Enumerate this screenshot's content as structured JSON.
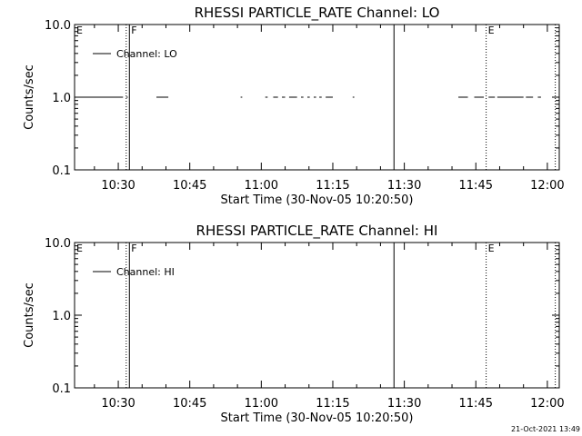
{
  "footer": {
    "timestamp": "21-Oct-2021 13:49"
  },
  "chart_data": [
    {
      "type": "line",
      "title": "RHESSI PARTICLE_RATE Channel: LO",
      "xlabel": "Start Time (30-Nov-05 10:20:50)",
      "ylabel": "Counts/sec",
      "yscale": "log",
      "ylim": [
        0.1,
        10.0
      ],
      "xlim": [
        "10:20:50",
        "12:02:30"
      ],
      "y_ticks": [
        "0.1",
        "1.0",
        "10.0"
      ],
      "x_ticks": [
        "10:30",
        "10:45",
        "11:00",
        "11:15",
        "11:30",
        "11:45",
        "12:00"
      ],
      "grid": false,
      "legend": {
        "position": "top-left",
        "entries": [
          "Channel: LO"
        ]
      },
      "annotations": [
        {
          "label": "E",
          "x": "10:20:50"
        },
        {
          "label": "F",
          "x": "10:32:20"
        },
        {
          "label": "E",
          "x": "11:47:10"
        }
      ],
      "vlines": [
        {
          "x": "10:31:40",
          "style": "dotted"
        },
        {
          "x": "10:32:20",
          "style": "solid"
        },
        {
          "x": "11:27:50",
          "style": "solid"
        },
        {
          "x": "11:47:10",
          "style": "dotted"
        },
        {
          "x": "12:01:40",
          "style": "dotted"
        }
      ],
      "series": [
        {
          "name": "Channel: LO",
          "segments": [
            {
              "x": [
                "10:20:50",
                "10:31:00"
              ],
              "y": 1.0
            },
            {
              "x": [
                "10:31:40",
                "10:32:00"
              ],
              "y": 1.0
            },
            {
              "x": [
                "10:38:00",
                "10:40:30"
              ],
              "y": 1.0
            },
            {
              "x": [
                "10:55:40",
                "10:56:00"
              ],
              "y": 1.0
            },
            {
              "x": [
                "11:00:50",
                "11:01:20"
              ],
              "y": 1.0
            },
            {
              "x": [
                "11:02:30",
                "11:03:30"
              ],
              "y": 1.0
            },
            {
              "x": [
                "11:04:20",
                "11:05:00"
              ],
              "y": 1.0
            },
            {
              "x": [
                "11:05:50",
                "11:07:30"
              ],
              "y": 1.0
            },
            {
              "x": [
                "11:08:20",
                "11:08:50"
              ],
              "y": 1.0
            },
            {
              "x": [
                "11:09:40",
                "11:10:10"
              ],
              "y": 1.0
            },
            {
              "x": [
                "11:11:00",
                "11:11:30"
              ],
              "y": 1.0
            },
            {
              "x": [
                "11:12:10",
                "11:12:40"
              ],
              "y": 1.0
            },
            {
              "x": [
                "11:13:30",
                "11:15:00"
              ],
              "y": 1.0
            },
            {
              "x": [
                "11:19:10",
                "11:19:30"
              ],
              "y": 1.0
            },
            {
              "x": [
                "11:41:20",
                "11:43:20"
              ],
              "y": 1.0
            },
            {
              "x": [
                "11:44:40",
                "11:46:40"
              ],
              "y": 1.0
            },
            {
              "x": [
                "11:47:40",
                "11:49:00"
              ],
              "y": 1.0
            },
            {
              "x": [
                "11:49:30",
                "11:55:00"
              ],
              "y": 1.0
            },
            {
              "x": [
                "11:55:30",
                "11:57:00"
              ],
              "y": 1.0
            },
            {
              "x": [
                "11:58:00",
                "11:58:40"
              ],
              "y": 1.0
            }
          ]
        }
      ]
    },
    {
      "type": "line",
      "title": "RHESSI PARTICLE_RATE Channel: HI",
      "xlabel": "Start Time (30-Nov-05 10:20:50)",
      "ylabel": "Counts/sec",
      "yscale": "log",
      "ylim": [
        0.1,
        10.0
      ],
      "xlim": [
        "10:20:50",
        "12:02:30"
      ],
      "y_ticks": [
        "0.1",
        "1.0",
        "10.0"
      ],
      "x_ticks": [
        "10:30",
        "10:45",
        "11:00",
        "11:15",
        "11:30",
        "11:45",
        "12:00"
      ],
      "grid": false,
      "legend": {
        "position": "top-left",
        "entries": [
          "Channel: HI"
        ]
      },
      "annotations": [
        {
          "label": "E",
          "x": "10:20:50"
        },
        {
          "label": "F",
          "x": "10:32:20"
        },
        {
          "label": "E",
          "x": "11:47:10"
        }
      ],
      "vlines": [
        {
          "x": "10:31:40",
          "style": "dotted"
        },
        {
          "x": "10:32:20",
          "style": "solid"
        },
        {
          "x": "11:27:50",
          "style": "solid"
        },
        {
          "x": "11:47:10",
          "style": "dotted"
        },
        {
          "x": "12:01:40",
          "style": "dotted"
        }
      ],
      "series": [
        {
          "name": "Channel: HI",
          "segments": []
        }
      ]
    }
  ]
}
